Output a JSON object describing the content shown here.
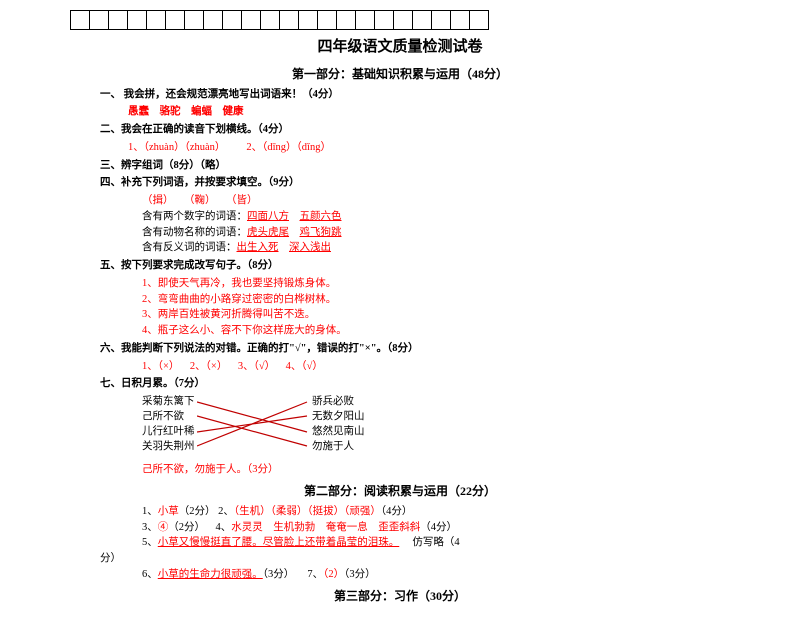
{
  "title": "四年级语文质量检测试卷",
  "part1": {
    "heading": "第一部分：基础知识积累与运用（48分）",
    "q1": {
      "label": "一、 我会拼，还会规范漂亮地写出词语来！（4分）",
      "answer": "愚蠢 骆驼 蝙蝠 健康"
    },
    "q2": {
      "label": "二、我会在正确的读音下划横线。（4分）",
      "line": "1、（zhuàn）（zhuàn）  2、（dīng）（dǐng）"
    },
    "q3": {
      "label": "三、辨字组词（8分）（略）"
    },
    "q4": {
      "label": "四、补充下列词语，并按要求填空。（9分）",
      "row1": "（揖） （鞠） （皆）",
      "rows": [
        {
          "prefix": "含有两个数字的词语：",
          "a": "四面八方",
          "b": "五颜六色"
        },
        {
          "prefix": "含有动物名称的词语：",
          "a": "虎头虎尾",
          "b": "鸡飞狗跳"
        },
        {
          "prefix": "含有反义词的词语：",
          "a": "出生入死",
          "b": "深入浅出"
        }
      ]
    },
    "q5": {
      "label": "五、按下列要求完成改写句子。（8分）",
      "items": [
        "1、即使天气再冷，我也要坚持锻炼身体。",
        "2、弯弯曲曲的小路穿过密密的白桦树林。",
        "3、两岸百姓被黄河折腾得叫苦不迭。",
        "4、瓶子这么小、容不下你这样庞大的身体。"
      ]
    },
    "q6": {
      "label": "六、我能判断下列说法的对错。正确的打\"√\"，错误的打\"×\"。（8分）",
      "answer": "1、（×） 2、（×） 3、（√） 4、（√）"
    },
    "q7": {
      "label": "七、日积月累。（7分）",
      "left": [
        "采菊东篱下",
        "己所不欲",
        "儿行红叶稀",
        "关羽失荆州"
      ],
      "right": [
        "骄兵必败",
        "无数夕阳山",
        "悠然见南山",
        "勿施于人"
      ],
      "bottom": "己所不欲，勿施于人。（3分）"
    }
  },
  "part2": {
    "heading": "第二部分：阅读积累与运用（22分）",
    "lines": [
      "1、小草（2分） 2、（生机）（柔弱）（挺拔）（顽强）（4分）",
      "3、④（2分） 4、水灵灵 生机勃勃 奄奄一息 歪歪斜斜（4分）",
      "5、小草又慢慢挺直了腰。尽管脸上还带着晶莹的泪珠。  仿写略（4",
      "分）",
      "6、小草的生命力很顽强。（3分）  7、（2）（3分）"
    ]
  },
  "part3": {
    "heading": "第三部分：习作（30分）"
  },
  "colors": {
    "answer": "#ff0000",
    "text": "#000000",
    "line": "#c00000"
  }
}
